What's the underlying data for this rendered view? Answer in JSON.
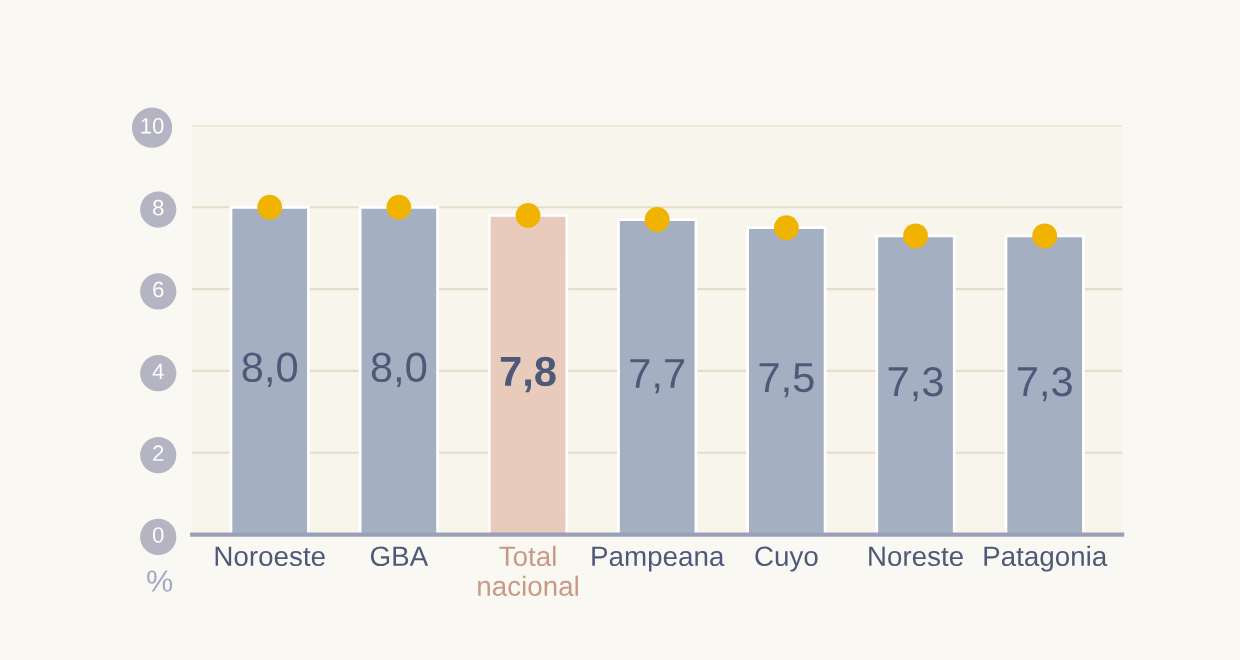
{
  "chart_data": {
    "type": "bar",
    "ylabel": "%",
    "categories": [
      "Noroeste",
      "GBA",
      "Total\nnacional",
      "Pampeana",
      "Cuyo",
      "Noreste",
      "Patagonia"
    ],
    "series": [
      {
        "values": [
          8.0,
          8.0,
          7.8,
          7.7,
          7.5,
          7.3,
          7.3
        ],
        "colors": [
          "#a4b0c2",
          "#a4b0c2",
          "#e8cbbb",
          "#a4b0c2",
          "#a4b0c2",
          "#a4b0c2",
          "#a4b0c2"
        ],
        "value_labels": [
          "8,0",
          "8,0",
          "7,8",
          "7,7",
          "7,5",
          "7,3",
          "7,3"
        ]
      },
      {
        "type": "scatter",
        "x": [
          "Noroeste",
          "GBA",
          "Total\nnacional",
          "Pampeana",
          "Cuyo",
          "Noreste",
          "Patagonia"
        ],
        "values": [
          8.0,
          8.0,
          7.8,
          7.7,
          7.5,
          7.3,
          7.3
        ],
        "color": "#f0b400",
        "marker": "circle"
      }
    ],
    "ylim": [
      0,
      10
    ],
    "yticks": [
      0,
      2,
      4,
      6,
      8,
      10
    ],
    "grid": "y",
    "legend": false
  }
}
